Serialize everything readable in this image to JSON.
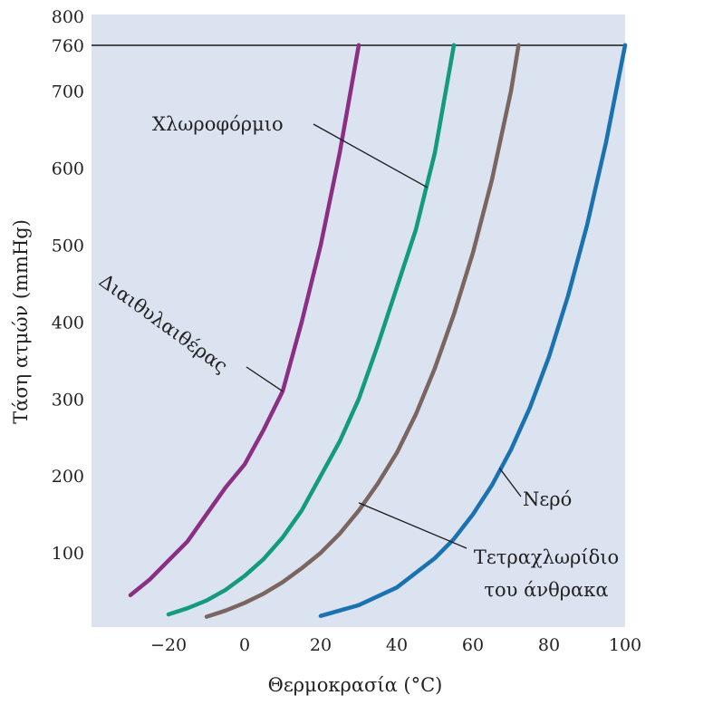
{
  "chart_data": {
    "type": "line",
    "xlabel": "Θερμοκρασία (°C)",
    "ylabel": "Τάση ατμών (mmHg)",
    "xlim": [
      -40,
      100
    ],
    "ylim": [
      0,
      800
    ],
    "x_ticks": [
      -20,
      0,
      20,
      40,
      60,
      80,
      100
    ],
    "x_tick_labels": [
      "−20",
      "0",
      "20",
      "40",
      "60",
      "80",
      "100"
    ],
    "y_ticks": [
      100,
      200,
      300,
      400,
      500,
      600,
      700,
      760,
      800
    ],
    "y_tick_labels": [
      "100",
      "200",
      "300",
      "400",
      "500",
      "600",
      "700",
      "760",
      "800"
    ],
    "reference_line": {
      "y": 760
    },
    "grid": false,
    "background_color": "#dbe3f0",
    "series": [
      {
        "name": "Διαιθυλαιθέρας",
        "color": "#8b2f84",
        "x": [
          -30,
          -25,
          -20,
          -15,
          -10,
          -5,
          0,
          5,
          10,
          15,
          20,
          25,
          30
        ],
        "y": [
          45,
          65,
          90,
          115,
          150,
          185,
          215,
          260,
          310,
          400,
          500,
          620,
          760
        ]
      },
      {
        "name": "Χλωροφόρμιο",
        "color": "#149a7e",
        "x": [
          -20,
          -15,
          -10,
          -5,
          0,
          5,
          10,
          15,
          20,
          25,
          30,
          35,
          40,
          45,
          50,
          55
        ],
        "y": [
          20,
          28,
          38,
          52,
          70,
          92,
          120,
          155,
          200,
          245,
          300,
          370,
          445,
          520,
          620,
          760
        ]
      },
      {
        "name": "Τετραχλωρίδιο\nτου άνθρακα",
        "color": "#7a6560",
        "x": [
          -10,
          -5,
          0,
          5,
          10,
          15,
          20,
          25,
          30,
          35,
          40,
          45,
          50,
          55,
          60,
          65,
          70,
          72
        ],
        "y": [
          17,
          25,
          35,
          47,
          62,
          80,
          100,
          125,
          155,
          190,
          230,
          280,
          340,
          410,
          490,
          585,
          700,
          760
        ]
      },
      {
        "name": "Νερό",
        "color": "#1a72b0",
        "x": [
          20,
          30,
          40,
          50,
          55,
          60,
          65,
          70,
          75,
          80,
          85,
          90,
          95,
          100
        ],
        "y": [
          18,
          32,
          55,
          93,
          118,
          150,
          188,
          234,
          289,
          355,
          434,
          526,
          634,
          760
        ]
      }
    ],
    "annotations": [
      {
        "text": "Χλωροφόρμιο",
        "series": "Χλωροφόρμιο",
        "x": 48,
        "y": 575
      },
      {
        "text": "Διαιθυλαιθέρας",
        "series": "Διαιθυλαιθέρας",
        "x": 10,
        "y": 310
      },
      {
        "text": "Νερό",
        "series": "Νερό",
        "x": 67,
        "y": 210
      },
      {
        "text": "Τετραχλωρίδιο",
        "series": "Τετραχλωρίδιο\nτου άνθρακα",
        "x": 30,
        "y": 165
      },
      {
        "text": "του άνθρακα",
        "series": "Τετραχλωρίδιο\nτου άνθρακα",
        "x": 30,
        "y": 165
      }
    ]
  }
}
